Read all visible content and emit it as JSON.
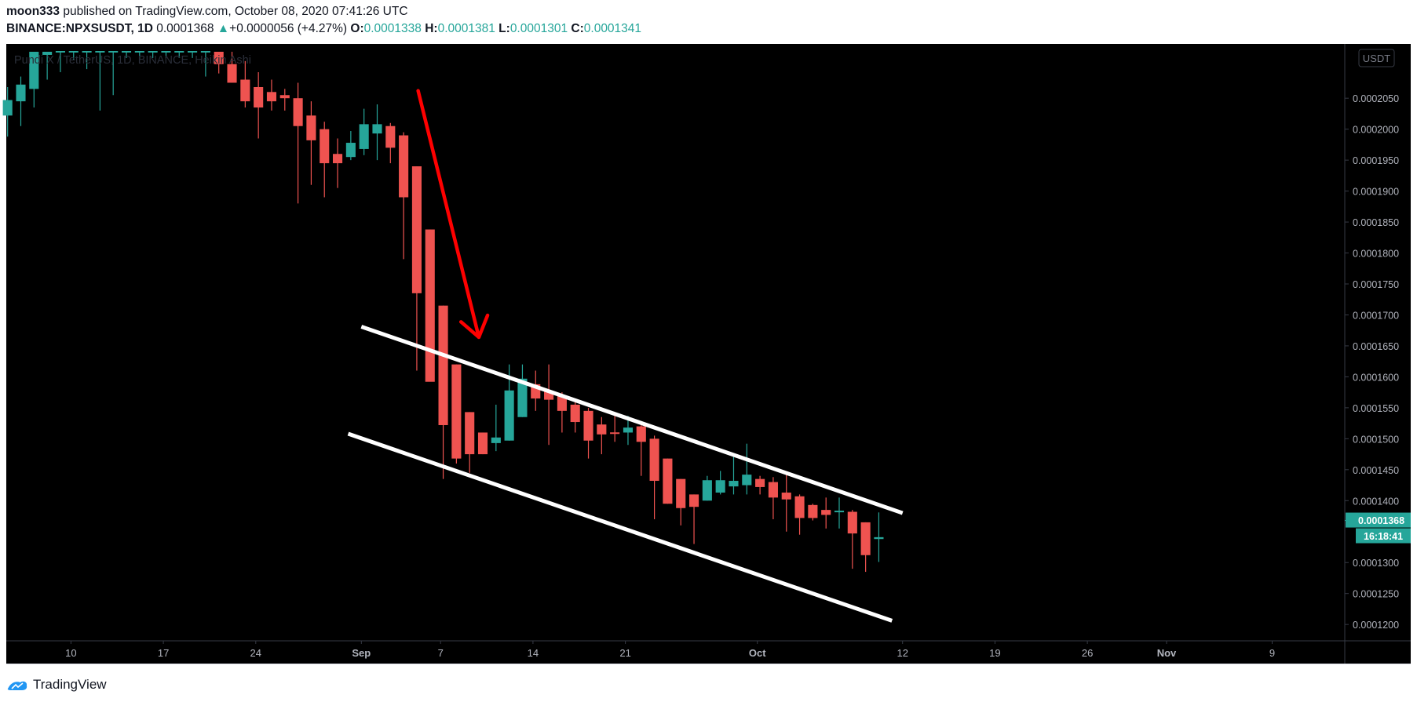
{
  "header": {
    "author": "moon333",
    "published_text": "published on TradingView.com, October 08, 2020 07:41:26 UTC",
    "symbol": "BINANCE:NPXSUSDT, 1D",
    "last_price": "0.0001368",
    "change": "+0.0000056 (+4.27%)",
    "o_label": "O:",
    "o_value": "0.0001338",
    "h_label": "H:",
    "h_value": "0.0001381",
    "l_label": "L:",
    "l_value": "0.0001301",
    "c_label": "C:",
    "c_value": "0.0001341"
  },
  "footer": {
    "brand": "TradingView"
  },
  "colors": {
    "up": "#26a69a",
    "down": "#ef5350",
    "background": "#000000",
    "arrow": "#ff0000",
    "channel": "#ffffff"
  },
  "chart_data": {
    "type": "candlestick",
    "style": "Heikin Ashi",
    "title": "Pundi X / TetherUS, 1D, BINANCE, Heikin Ashi",
    "currency": "USDT",
    "ylim": [
      0.0001185,
      0.0002125
    ],
    "y_ticks": [
      "0.0002050",
      "0.0002000",
      "0.0001950",
      "0.0001900",
      "0.0001850",
      "0.0001800",
      "0.0001750",
      "0.0001700",
      "0.0001650",
      "0.0001600",
      "0.0001550",
      "0.0001500",
      "0.0001450",
      "0.0001400",
      "0.0001300",
      "0.0001250",
      "0.0001200"
    ],
    "x_ticks": [
      {
        "label": "10",
        "day": 10
      },
      {
        "label": "17",
        "day": 17
      },
      {
        "label": "24",
        "day": 24
      },
      {
        "label": "Sep",
        "day": 32
      },
      {
        "label": "7",
        "day": 38
      },
      {
        "label": "14",
        "day": 45
      },
      {
        "label": "21",
        "day": 52
      },
      {
        "label": "Oct",
        "day": 62
      },
      {
        "label": "12",
        "day": 73
      },
      {
        "label": "19",
        "day": 80
      },
      {
        "label": "26",
        "day": 87
      },
      {
        "label": "Nov",
        "day": 93
      },
      {
        "label": "9",
        "day": 101
      }
    ],
    "xlim_days": [
      5.1,
      106.5
    ],
    "last_price_label": "0.0001368",
    "countdown_label": "16:18:41",
    "candles": [
      {
        "d": 5.2,
        "o": 0.0002022,
        "h": 0.0002068,
        "l": 0.0001988,
        "c": 0.0002047
      },
      {
        "d": 6.2,
        "o": 0.0002045,
        "h": 0.0002085,
        "l": 0.0002005,
        "c": 0.0002072
      },
      {
        "d": 7.2,
        "o": 0.0002065,
        "h": 0.0002125,
        "l": 0.0002035,
        "c": 0.0002125
      },
      {
        "d": 8.2,
        "o": 0.000212,
        "h": 0.0002125,
        "l": 0.000208,
        "c": 0.0002125
      },
      {
        "d": 9.2,
        "o": 0.0002125,
        "h": 0.0002125,
        "l": 0.0002092,
        "c": 0.0002125
      },
      {
        "d": 10.2,
        "o": 0.0002125,
        "h": 0.0002125,
        "l": 0.0002112,
        "c": 0.0002125
      },
      {
        "d": 11.2,
        "o": 0.0002125,
        "h": 0.0002125,
        "l": 0.0002097,
        "c": 0.0002125
      },
      {
        "d": 12.2,
        "o": 0.0002125,
        "h": 0.0002125,
        "l": 0.000203,
        "c": 0.0002125
      },
      {
        "d": 13.2,
        "o": 0.0002125,
        "h": 0.0002125,
        "l": 0.0002055,
        "c": 0.0002125
      },
      {
        "d": 14.2,
        "o": 0.0002125,
        "h": 0.0002125,
        "l": 0.0002115,
        "c": 0.0002125
      },
      {
        "d": 15.2,
        "o": 0.0002125,
        "h": 0.0002125,
        "l": 0.0002112,
        "c": 0.0002125
      },
      {
        "d": 16.2,
        "o": 0.0002125,
        "h": 0.0002125,
        "l": 0.0002115,
        "c": 0.0002125
      },
      {
        "d": 17.2,
        "o": 0.0002125,
        "h": 0.0002125,
        "l": 0.0002115,
        "c": 0.0002125
      },
      {
        "d": 18.2,
        "o": 0.0002125,
        "h": 0.0002125,
        "l": 0.0002115,
        "c": 0.0002125
      },
      {
        "d": 19.2,
        "o": 0.0002125,
        "h": 0.0002125,
        "l": 0.0002115,
        "c": 0.0002125
      },
      {
        "d": 20.2,
        "o": 0.0002125,
        "h": 0.0002125,
        "l": 0.0002085,
        "c": 0.0002125
      },
      {
        "d": 21.2,
        "o": 0.0002125,
        "h": 0.0002125,
        "l": 0.000209,
        "c": 0.0002105
      },
      {
        "d": 22.2,
        "o": 0.0002105,
        "h": 0.0002125,
        "l": 0.0002075,
        "c": 0.0002075
      },
      {
        "d": 23.2,
        "o": 0.000208,
        "h": 0.000211,
        "l": 0.0002035,
        "c": 0.0002045
      },
      {
        "d": 24.2,
        "o": 0.0002068,
        "h": 0.0002092,
        "l": 0.0001985,
        "c": 0.0002035
      },
      {
        "d": 25.2,
        "o": 0.000206,
        "h": 0.000208,
        "l": 0.000203,
        "c": 0.0002045
      },
      {
        "d": 26.2,
        "o": 0.0002055,
        "h": 0.0002065,
        "l": 0.000203,
        "c": 0.000205
      },
      {
        "d": 27.2,
        "o": 0.000205,
        "h": 0.0002075,
        "l": 0.000188,
        "c": 0.0002005
      },
      {
        "d": 28.2,
        "o": 0.0002022,
        "h": 0.0002045,
        "l": 0.000191,
        "c": 0.0001982
      },
      {
        "d": 29.2,
        "o": 0.0002,
        "h": 0.0002012,
        "l": 0.000189,
        "c": 0.0001945
      },
      {
        "d": 30.2,
        "o": 0.000196,
        "h": 0.0001985,
        "l": 0.0001905,
        "c": 0.0001945
      },
      {
        "d": 31.2,
        "o": 0.0001955,
        "h": 0.0001997,
        "l": 0.000195,
        "c": 0.0001978
      },
      {
        "d": 32.2,
        "o": 0.0001968,
        "h": 0.0002033,
        "l": 0.0001958,
        "c": 0.0002008
      },
      {
        "d": 33.2,
        "o": 0.0001993,
        "h": 0.000204,
        "l": 0.000195,
        "c": 0.0002008
      },
      {
        "d": 34.2,
        "o": 0.0002005,
        "h": 0.000201,
        "l": 0.0001945,
        "c": 0.000197
      },
      {
        "d": 35.2,
        "o": 0.000199,
        "h": 0.0001995,
        "l": 0.000179,
        "c": 0.000189
      },
      {
        "d": 36.2,
        "o": 0.000194,
        "h": 0.000194,
        "l": 0.000161,
        "c": 0.0001735
      },
      {
        "d": 37.2,
        "o": 0.0001838,
        "h": 0.0001838,
        "l": 0.0001595,
        "c": 0.0001592
      },
      {
        "d": 38.2,
        "o": 0.0001715,
        "h": 0.0001715,
        "l": 0.0001435,
        "c": 0.0001522
      },
      {
        "d": 39.2,
        "o": 0.000162,
        "h": 0.000162,
        "l": 0.000146,
        "c": 0.0001468
      },
      {
        "d": 40.2,
        "o": 0.0001543,
        "h": 0.0001543,
        "l": 0.0001445,
        "c": 0.0001475
      },
      {
        "d": 41.2,
        "o": 0.000151,
        "h": 0.000151,
        "l": 0.0001475,
        "c": 0.0001475
      },
      {
        "d": 42.2,
        "o": 0.0001493,
        "h": 0.0001555,
        "l": 0.000148,
        "c": 0.0001502
      },
      {
        "d": 43.2,
        "o": 0.0001497,
        "h": 0.000162,
        "l": 0.0001497,
        "c": 0.0001578
      },
      {
        "d": 44.2,
        "o": 0.0001535,
        "h": 0.000162,
        "l": 0.0001535,
        "c": 0.0001597
      },
      {
        "d": 45.2,
        "o": 0.0001588,
        "h": 0.000161,
        "l": 0.0001545,
        "c": 0.0001565
      },
      {
        "d": 46.2,
        "o": 0.0001577,
        "h": 0.000162,
        "l": 0.000149,
        "c": 0.0001563
      },
      {
        "d": 47.2,
        "o": 0.000157,
        "h": 0.0001575,
        "l": 0.000151,
        "c": 0.0001545
      },
      {
        "d": 48.2,
        "o": 0.0001555,
        "h": 0.0001565,
        "l": 0.000151,
        "c": 0.0001527
      },
      {
        "d": 49.2,
        "o": 0.0001545,
        "h": 0.000155,
        "l": 0.0001468,
        "c": 0.0001497
      },
      {
        "d": 50.2,
        "o": 0.0001523,
        "h": 0.0001535,
        "l": 0.0001475,
        "c": 0.0001507
      },
      {
        "d": 51.2,
        "o": 0.000151,
        "h": 0.0001537,
        "l": 0.0001495,
        "c": 0.0001508
      },
      {
        "d": 52.2,
        "o": 0.000151,
        "h": 0.0001537,
        "l": 0.000149,
        "c": 0.0001518
      },
      {
        "d": 53.2,
        "o": 0.000152,
        "h": 0.0001525,
        "l": 0.000144,
        "c": 0.0001495
      },
      {
        "d": 54.2,
        "o": 0.00015,
        "h": 0.0001505,
        "l": 0.000137,
        "c": 0.0001432
      },
      {
        "d": 55.2,
        "o": 0.0001468,
        "h": 0.0001468,
        "l": 0.0001395,
        "c": 0.0001395
      },
      {
        "d": 56.2,
        "o": 0.0001435,
        "h": 0.0001435,
        "l": 0.000136,
        "c": 0.0001388
      },
      {
        "d": 57.2,
        "o": 0.000141,
        "h": 0.000141,
        "l": 0.000133,
        "c": 0.000139
      },
      {
        "d": 58.2,
        "o": 0.00014,
        "h": 0.000144,
        "l": 0.00014,
        "c": 0.0001433
      },
      {
        "d": 59.2,
        "o": 0.0001413,
        "h": 0.0001448,
        "l": 0.000141,
        "c": 0.0001433
      },
      {
        "d": 60.2,
        "o": 0.0001423,
        "h": 0.0001475,
        "l": 0.000141,
        "c": 0.0001432
      },
      {
        "d": 61.2,
        "o": 0.0001425,
        "h": 0.0001492,
        "l": 0.000141,
        "c": 0.0001442
      },
      {
        "d": 62.2,
        "o": 0.0001435,
        "h": 0.000144,
        "l": 0.000141,
        "c": 0.0001422
      },
      {
        "d": 63.2,
        "o": 0.000143,
        "h": 0.0001438,
        "l": 0.000137,
        "c": 0.0001405
      },
      {
        "d": 64.2,
        "o": 0.0001413,
        "h": 0.0001445,
        "l": 0.000135,
        "c": 0.0001402
      },
      {
        "d": 65.2,
        "o": 0.0001407,
        "h": 0.000141,
        "l": 0.0001345,
        "c": 0.0001372
      },
      {
        "d": 66.2,
        "o": 0.0001393,
        "h": 0.0001395,
        "l": 0.0001368,
        "c": 0.0001372
      },
      {
        "d": 67.2,
        "o": 0.0001385,
        "h": 0.0001405,
        "l": 0.0001355,
        "c": 0.0001377
      },
      {
        "d": 68.2,
        "o": 0.0001382,
        "h": 0.0001405,
        "l": 0.0001355,
        "c": 0.0001383
      },
      {
        "d": 69.2,
        "o": 0.0001382,
        "h": 0.0001385,
        "l": 0.000129,
        "c": 0.0001347
      },
      {
        "d": 70.2,
        "o": 0.0001365,
        "h": 0.0001365,
        "l": 0.0001285,
        "c": 0.0001312
      },
      {
        "d": 71.2,
        "o": 0.0001338,
        "h": 0.0001381,
        "l": 0.0001301,
        "c": 0.0001341
      }
    ],
    "trendlines": [
      {
        "name": "channel-upper",
        "from": {
          "day": 32.0,
          "price": 0.0001681
        },
        "to": {
          "day": 73.0,
          "price": 0.000138
        }
      },
      {
        "name": "channel-lower",
        "from": {
          "day": 31.0,
          "price": 0.0001508
        },
        "to": {
          "day": 72.2,
          "price": 0.0001206
        }
      }
    ],
    "arrow": {
      "from": {
        "day": 36.3,
        "price": 0.0002062
      },
      "to": {
        "day": 40.9,
        "price": 0.0001664
      }
    }
  }
}
